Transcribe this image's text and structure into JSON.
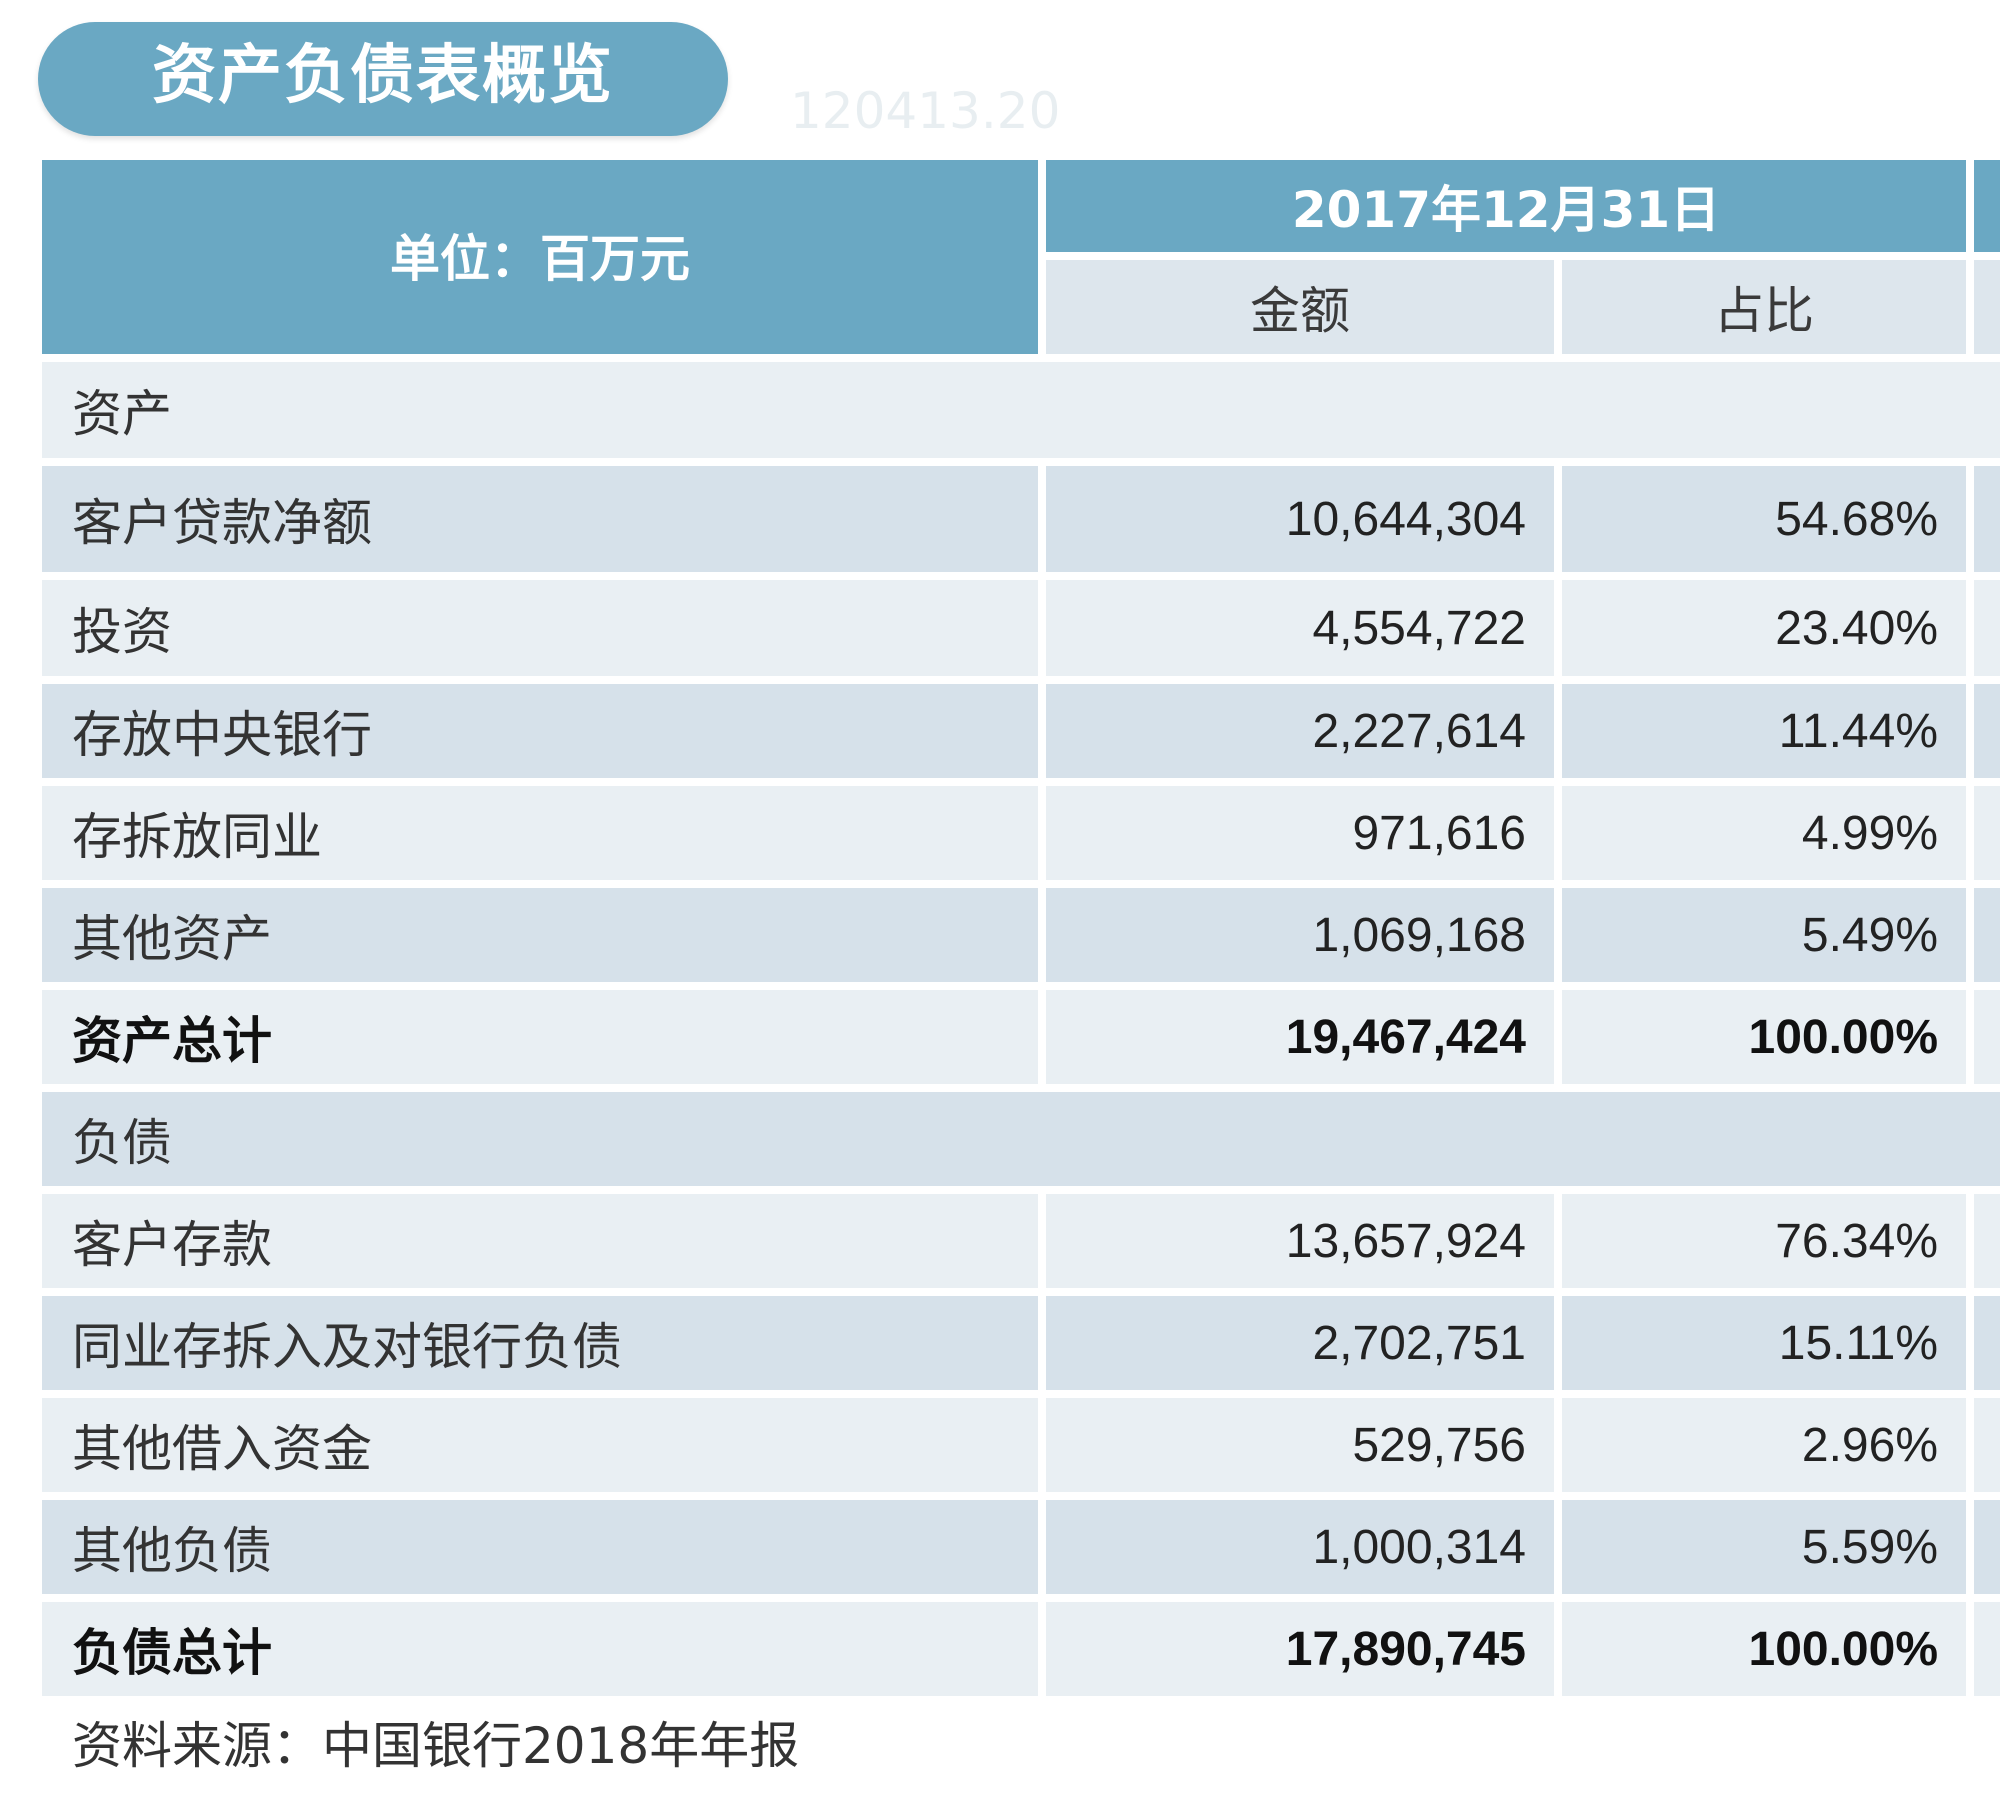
{
  "title": "资产负债表概览",
  "watermark": "120413.20",
  "header": {
    "unit_label": "单位：百万元",
    "date": "2017年12月31日",
    "col_amount": "金额",
    "col_ratio": "占比"
  },
  "table": {
    "assets_section": "资产",
    "assets": [
      {
        "label": "客户贷款净额",
        "amount": "10,644,304",
        "ratio": "54.68%"
      },
      {
        "label": "投资",
        "amount": "4,554,722",
        "ratio": "23.40%"
      },
      {
        "label": "存放中央银行",
        "amount": "2,227,614",
        "ratio": "11.44%"
      },
      {
        "label": "存拆放同业",
        "amount": "971,616",
        "ratio": "4.99%"
      },
      {
        "label": "其他资产",
        "amount": "1,069,168",
        "ratio": "5.49%"
      }
    ],
    "assets_total": {
      "label": "资产总计",
      "amount": "19,467,424",
      "ratio": "100.00%"
    },
    "liabilities_section": "负债",
    "liabilities": [
      {
        "label": "客户存款",
        "amount": "13,657,924",
        "ratio": "76.34%"
      },
      {
        "label": "同业存拆入及对银行负债",
        "amount": "2,702,751",
        "ratio": "15.11%"
      },
      {
        "label": "其他借入资金",
        "amount": "529,756",
        "ratio": "2.96%"
      },
      {
        "label": "其他负债",
        "amount": "1,000,314",
        "ratio": "5.59%"
      }
    ],
    "liabilities_total": {
      "label": "负债总计",
      "amount": "17,890,745",
      "ratio": "100.00%"
    }
  },
  "source": "资料来源：中国银行2018年年报",
  "colors": {
    "header_bg": "#6aa8c3",
    "subheader_bg": "#dde6ed",
    "row_light": "#e9eff3",
    "row_dark": "#d6e1ea"
  }
}
